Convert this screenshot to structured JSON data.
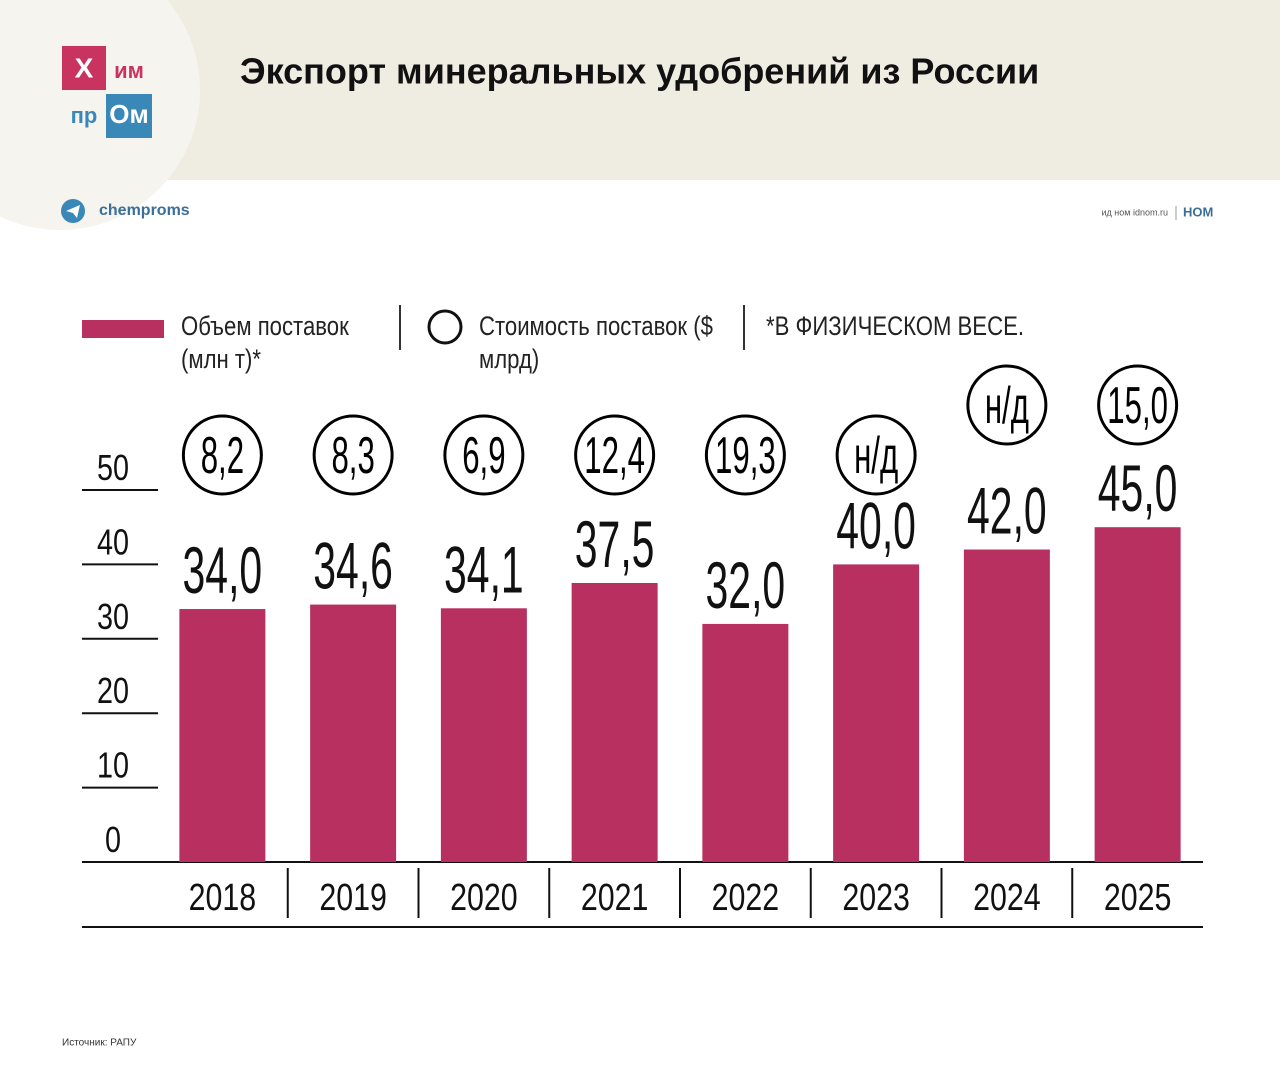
{
  "header": {
    "logo": [
      "Х",
      "им",
      "пр",
      "Ом"
    ],
    "title": "Экспорт минеральных удобрений из России",
    "channel": "chemproms",
    "publisher": "ид ном idnom.ru",
    "publisher_logo": "НОМ"
  },
  "chart_data": {
    "type": "bar",
    "categories": [
      "2018",
      "2019",
      "2020",
      "2021",
      "2022",
      "2023",
      "2024",
      "2025"
    ],
    "series": [
      {
        "name": "Объем поставок (млн т)*",
        "color": "#b8305f",
        "values": [
          34.0,
          34.6,
          34.1,
          37.5,
          32.0,
          40.0,
          42.0,
          45.0
        ],
        "value_labels": [
          "34,0",
          "34,6",
          "34,1",
          "37,5",
          "32,0",
          "40,0",
          "42,0",
          "45,0"
        ]
      },
      {
        "name": "Стоимость поставок ($ млрд)",
        "color": "#000000",
        "values": [
          8.2,
          8.3,
          6.9,
          12.4,
          19.3,
          null,
          null,
          15.0
        ],
        "value_labels": [
          "8,2",
          "8,3",
          "6,9",
          "12,4",
          "19,3",
          "н/д",
          "н/д",
          "15,0"
        ]
      }
    ],
    "note": "*В ФИЗИЧЕСКОМ ВЕСЕ.",
    "ylim": [
      0,
      50
    ],
    "yticks": [
      0,
      10,
      20,
      30,
      40,
      50
    ]
  },
  "footer": {
    "source": "Источник: РАПУ"
  }
}
